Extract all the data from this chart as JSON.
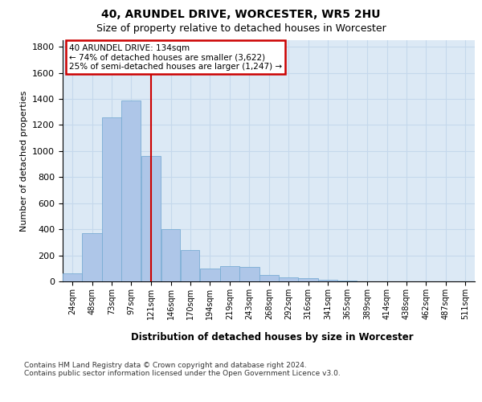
{
  "title1": "40, ARUNDEL DRIVE, WORCESTER, WR5 2HU",
  "title2": "Size of property relative to detached houses in Worcester",
  "xlabel": "Distribution of detached houses by size in Worcester",
  "ylabel": "Number of detached properties",
  "footnote": "Contains HM Land Registry data © Crown copyright and database right 2024.\nContains public sector information licensed under the Open Government Licence v3.0.",
  "property_label": "40 ARUNDEL DRIVE: 134sqm",
  "annotation_line1": "← 74% of detached houses are smaller (3,622)",
  "annotation_line2": "25% of semi-detached houses are larger (1,247) →",
  "property_size": 134,
  "bar_categories": [
    "24sqm",
    "48sqm",
    "73sqm",
    "97sqm",
    "121sqm",
    "146sqm",
    "170sqm",
    "194sqm",
    "219sqm",
    "243sqm",
    "268sqm",
    "292sqm",
    "316sqm",
    "341sqm",
    "365sqm",
    "389sqm",
    "414sqm",
    "438sqm",
    "462sqm",
    "487sqm",
    "511sqm"
  ],
  "bar_left_edges": [
    24,
    48,
    73,
    97,
    121,
    146,
    170,
    194,
    219,
    243,
    268,
    292,
    316,
    341,
    365,
    389,
    414,
    438,
    462,
    487,
    511
  ],
  "bar_widths": [
    24,
    25,
    24,
    24,
    25,
    24,
    24,
    25,
    24,
    25,
    24,
    24,
    25,
    24,
    24,
    25,
    24,
    24,
    25,
    24,
    24
  ],
  "bar_heights": [
    60,
    370,
    1260,
    1390,
    960,
    400,
    240,
    100,
    120,
    110,
    50,
    30,
    25,
    10,
    5,
    3,
    2,
    1,
    1,
    0,
    0
  ],
  "bar_color": "#aec6e8",
  "bar_edge_color": "#7aadd4",
  "ylim": [
    0,
    1850
  ],
  "yticks": [
    0,
    200,
    400,
    600,
    800,
    1000,
    1200,
    1400,
    1600,
    1800
  ],
  "grid_color": "#c5d8ec",
  "bg_color": "#dce9f5",
  "annotation_box_edgecolor": "#cc0000",
  "vline_color": "#cc0000",
  "vline_x": 134
}
